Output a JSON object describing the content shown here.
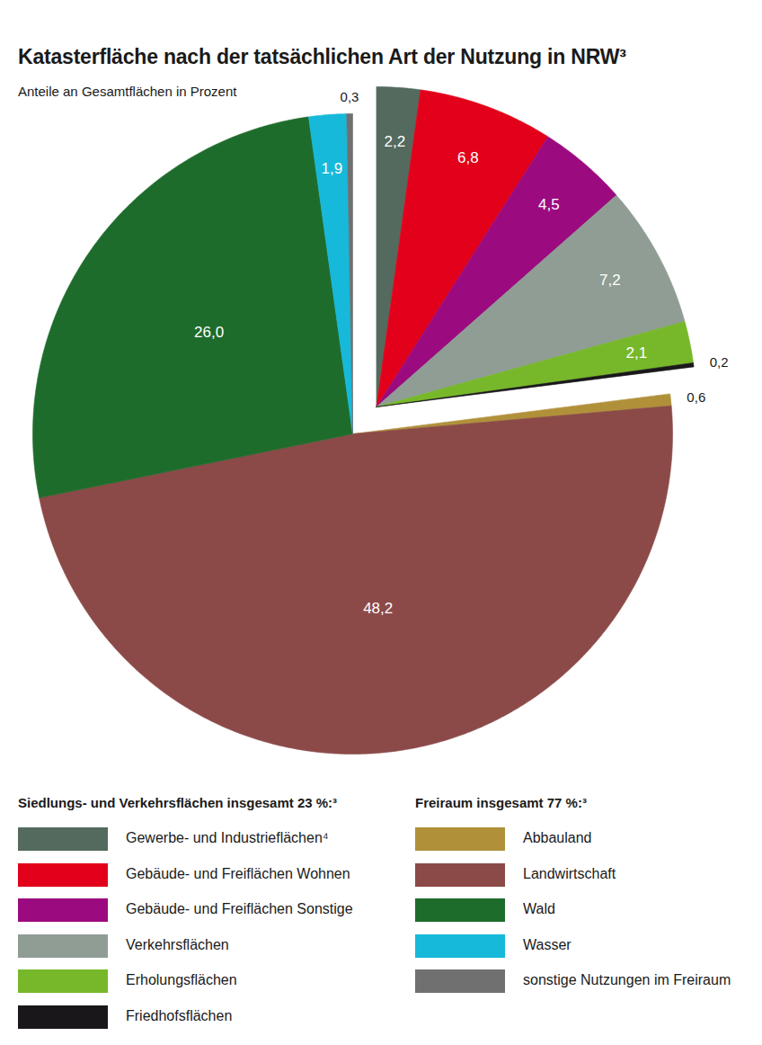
{
  "chart_data": {
    "type": "pie",
    "title": "Katasterfläche nach der tatsächlichen Art der Nutzung in NRW³",
    "subtitle": "Anteile an Gesamtflächen in Prozent",
    "data_labels": true,
    "legend": "bottom",
    "groups": [
      {
        "title": "Siedlungs- und Verkehrsflächen insgesamt 23 %:³",
        "categories": [
          "Gewerbe- und Industrieflächen⁴",
          "Gebäude- und Freiflächen Wohnen",
          "Gebäude- und Freiflächen Sonstige",
          "Verkehrsflächen",
          "Erholungsflächen",
          "Friedhofsflächen"
        ],
        "values": [
          2.2,
          6.8,
          4.5,
          7.2,
          2.1,
          0.2
        ],
        "value_labels": [
          "2,2",
          "6,8",
          "4,5",
          "7,2",
          "2,1",
          "0,2"
        ],
        "colors": [
          "#546a5e",
          "#e2001a",
          "#9b0b7f",
          "#8f9d94",
          "#77b82a",
          "#1a171b"
        ]
      },
      {
        "title": "Freiraum insgesamt 77 %:³",
        "categories": [
          "Abbauland",
          "Landwirtschaft",
          "Wald",
          "Wasser",
          "sonstige Nutzungen im Freiraum"
        ],
        "values": [
          0.6,
          48.2,
          26.0,
          1.9,
          0.3
        ],
        "value_labels": [
          "0,6",
          "48,2",
          "26,0",
          "1,9",
          "0,3"
        ],
        "colors": [
          "#b0913a",
          "#8b4a48",
          "#1e6c2c",
          "#16b9da",
          "#707070"
        ]
      }
    ]
  }
}
